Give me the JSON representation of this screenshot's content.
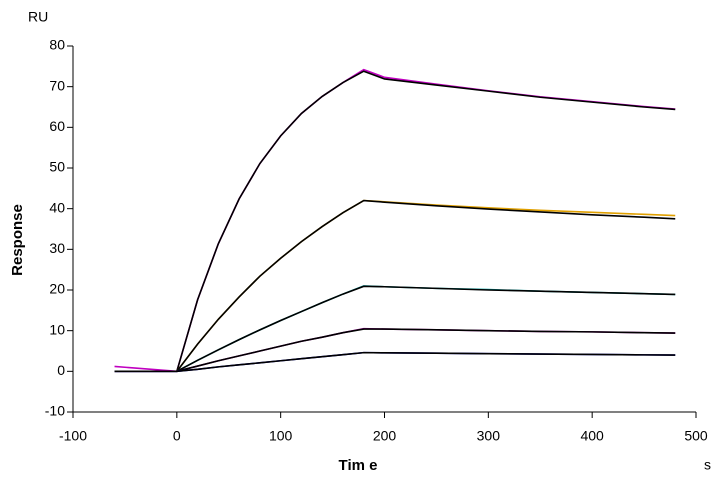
{
  "chart_data": {
    "type": "line",
    "y_unit": "RU",
    "x_unit": "s",
    "ylabel": "Response",
    "xlabel": "Tim e",
    "x": [
      -60,
      -40,
      -20,
      0,
      20,
      40,
      60,
      80,
      100,
      120,
      140,
      160,
      180,
      200,
      250,
      300,
      350,
      400,
      450,
      480
    ],
    "series": [
      {
        "color": "#c000c0",
        "values": [
          1.2,
          0.8,
          0.4,
          0,
          17.6,
          31.4,
          42.4,
          51.1,
          57.9,
          63.4,
          67.6,
          71.0,
          74.2,
          72.3,
          70.6,
          69.0,
          67.5,
          66.3,
          65.1,
          64.5
        ]
      },
      {
        "color": "#000000",
        "values": [
          null,
          null,
          null,
          0,
          17.6,
          31.4,
          42.4,
          51.1,
          57.9,
          63.4,
          67.6,
          71.0,
          73.8,
          71.9,
          70.4,
          68.9,
          67.4,
          66.2,
          65.0,
          64.4
        ]
      },
      {
        "color": "#e0a000",
        "values": [
          0,
          0,
          0,
          0,
          6.7,
          12.8,
          18.3,
          23.4,
          27.8,
          31.9,
          35.6,
          39.0,
          42.0,
          41.7,
          40.9,
          40.2,
          39.6,
          39.1,
          38.6,
          38.3
        ]
      },
      {
        "color": "#000000",
        "values": [
          null,
          null,
          null,
          0,
          6.7,
          12.8,
          18.3,
          23.4,
          27.8,
          31.9,
          35.6,
          39.0,
          42.0,
          41.6,
          40.7,
          39.9,
          39.2,
          38.5,
          37.9,
          37.5
        ]
      },
      {
        "color": "#00a0a0",
        "values": [
          0,
          0,
          0,
          0,
          2.7,
          5.3,
          7.8,
          10.2,
          12.5,
          14.7,
          16.9,
          19.0,
          21.0,
          20.8,
          20.4,
          20.1,
          19.7,
          19.4,
          19.1,
          18.9
        ]
      },
      {
        "color": "#000000",
        "values": [
          null,
          null,
          null,
          0,
          2.7,
          5.3,
          7.8,
          10.2,
          12.5,
          14.7,
          16.9,
          19.0,
          20.9,
          20.8,
          20.4,
          20.0,
          19.7,
          19.4,
          19.1,
          18.9
        ]
      },
      {
        "color": "#a000a0",
        "values": [
          0,
          0,
          0,
          0,
          1.3,
          2.6,
          3.8,
          5.0,
          6.2,
          7.4,
          8.4,
          9.5,
          10.5,
          10.4,
          10.2,
          10.0,
          9.8,
          9.7,
          9.5,
          9.4
        ]
      },
      {
        "color": "#000000",
        "values": [
          null,
          null,
          null,
          0,
          1.3,
          2.6,
          3.8,
          5.0,
          6.2,
          7.4,
          8.4,
          9.5,
          10.4,
          10.4,
          10.2,
          10.0,
          9.8,
          9.7,
          9.5,
          9.4
        ]
      },
      {
        "color": "#0000c0",
        "values": [
          0,
          0,
          0,
          0,
          0.5,
          1.1,
          1.6,
          2.1,
          2.6,
          3.1,
          3.6,
          4.1,
          4.6,
          4.55,
          4.45,
          4.35,
          4.25,
          4.15,
          4.05,
          4.0
        ]
      },
      {
        "color": "#000000",
        "values": [
          0,
          0,
          0,
          0,
          0.5,
          1.1,
          1.6,
          2.1,
          2.6,
          3.1,
          3.6,
          4.1,
          4.6,
          4.55,
          4.45,
          4.35,
          4.25,
          4.15,
          4.05,
          4.0
        ]
      }
    ],
    "xlim": [
      -100,
      500
    ],
    "xticks": [
      -100,
      0,
      100,
      200,
      300,
      400,
      500
    ],
    "ylim": [
      -10,
      80
    ],
    "yticks": [
      -10,
      0,
      10,
      20,
      30,
      40,
      50,
      60,
      70,
      80
    ]
  }
}
